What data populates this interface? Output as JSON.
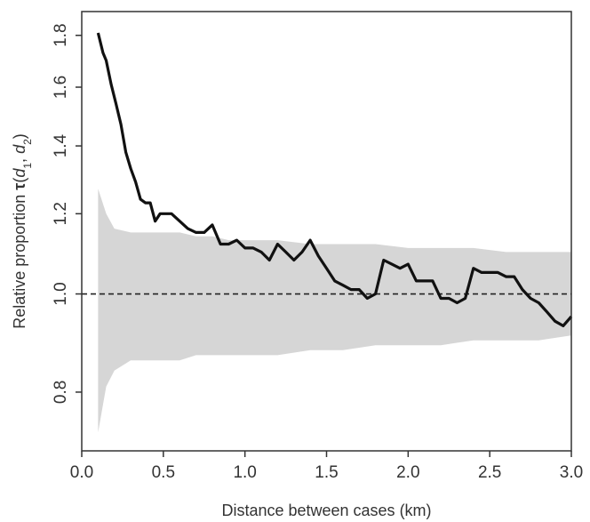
{
  "chart_data": {
    "type": "line",
    "xlabel": "Distance between cases (km)",
    "ylabel": {
      "prefix": "Relative proportion ",
      "symbol": "τ",
      "args": [
        "d",
        "1",
        "d",
        "2"
      ]
    },
    "xlim": [
      0.0,
      3.0
    ],
    "ylim": [
      0.7,
      1.9
    ],
    "y_scale": "log",
    "x_ticks": [
      "0.0",
      "0.5",
      "1.0",
      "1.5",
      "2.0",
      "2.5",
      "3.0"
    ],
    "y_ticks": [
      "0.8",
      "1.0",
      "1.2",
      "1.4",
      "1.6",
      "1.8"
    ],
    "grid": false,
    "reference_line": {
      "y": 1.0,
      "style": "dashed"
    },
    "colors": {
      "line": "#111111",
      "band": "#d6d6d6",
      "reference": "#222222"
    },
    "series": [
      {
        "role": "observed",
        "x": [
          0.1,
          0.13,
          0.15,
          0.18,
          0.21,
          0.24,
          0.27,
          0.3,
          0.33,
          0.36,
          0.39,
          0.42,
          0.45,
          0.48,
          0.51,
          0.55,
          0.6,
          0.65,
          0.7,
          0.75,
          0.8,
          0.85,
          0.9,
          0.95,
          1.0,
          1.05,
          1.1,
          1.15,
          1.2,
          1.25,
          1.3,
          1.35,
          1.4,
          1.45,
          1.5,
          1.55,
          1.6,
          1.65,
          1.7,
          1.75,
          1.8,
          1.85,
          1.9,
          1.95,
          2.0,
          2.05,
          2.1,
          2.15,
          2.2,
          2.25,
          2.3,
          2.35,
          2.4,
          2.45,
          2.5,
          2.55,
          2.6,
          2.65,
          2.7,
          2.75,
          2.8,
          2.85,
          2.9,
          2.95,
          3.0
        ],
        "y": [
          1.81,
          1.73,
          1.7,
          1.61,
          1.54,
          1.47,
          1.38,
          1.33,
          1.29,
          1.24,
          1.23,
          1.23,
          1.18,
          1.2,
          1.2,
          1.2,
          1.18,
          1.16,
          1.15,
          1.15,
          1.17,
          1.12,
          1.12,
          1.13,
          1.11,
          1.11,
          1.1,
          1.08,
          1.12,
          1.1,
          1.08,
          1.1,
          1.13,
          1.09,
          1.06,
          1.03,
          1.02,
          1.01,
          1.01,
          0.99,
          1.0,
          1.08,
          1.07,
          1.06,
          1.07,
          1.03,
          1.03,
          1.03,
          0.99,
          0.99,
          0.98,
          0.99,
          1.06,
          1.05,
          1.05,
          1.05,
          1.04,
          1.04,
          1.01,
          0.99,
          0.98,
          0.96,
          0.94,
          0.93,
          0.95
        ]
      },
      {
        "role": "envelope_upper",
        "x": [
          0.1,
          0.15,
          0.2,
          0.3,
          0.4,
          0.5,
          0.6,
          0.7,
          0.8,
          0.9,
          1.0,
          1.2,
          1.4,
          1.6,
          1.8,
          2.0,
          2.2,
          2.4,
          2.6,
          2.8,
          3.0
        ],
        "y": [
          1.27,
          1.2,
          1.16,
          1.15,
          1.15,
          1.15,
          1.15,
          1.14,
          1.14,
          1.13,
          1.13,
          1.13,
          1.12,
          1.12,
          1.12,
          1.11,
          1.11,
          1.11,
          1.1,
          1.1,
          1.1
        ]
      },
      {
        "role": "envelope_lower",
        "x": [
          0.1,
          0.15,
          0.2,
          0.3,
          0.4,
          0.5,
          0.6,
          0.7,
          0.8,
          0.9,
          1.0,
          1.2,
          1.4,
          1.6,
          1.8,
          2.0,
          2.2,
          2.4,
          2.6,
          2.8,
          3.0
        ],
        "y": [
          0.73,
          0.81,
          0.84,
          0.86,
          0.86,
          0.86,
          0.86,
          0.87,
          0.87,
          0.87,
          0.87,
          0.87,
          0.88,
          0.88,
          0.89,
          0.89,
          0.89,
          0.9,
          0.9,
          0.9,
          0.91
        ]
      }
    ]
  }
}
